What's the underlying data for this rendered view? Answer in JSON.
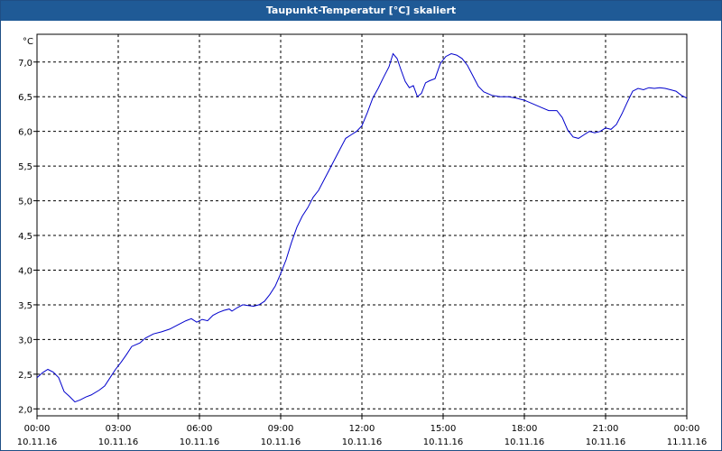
{
  "window": {
    "title": "Taupunkt-Temperatur [°C] skaliert"
  },
  "chart_data": {
    "type": "line",
    "title": "Taupunkt-Temperatur [°C] skaliert",
    "ylabel": "°C",
    "ylim": [
      1.9,
      7.4
    ],
    "xlim": [
      0,
      24
    ],
    "grid": true,
    "y_ticks": [
      {
        "value": 2.0,
        "label": "2,0"
      },
      {
        "value": 2.5,
        "label": "2,5"
      },
      {
        "value": 3.0,
        "label": "3,0"
      },
      {
        "value": 3.5,
        "label": "3,5"
      },
      {
        "value": 4.0,
        "label": "4,0"
      },
      {
        "value": 4.5,
        "label": "4,5"
      },
      {
        "value": 5.0,
        "label": "5,0"
      },
      {
        "value": 5.5,
        "label": "5,5"
      },
      {
        "value": 6.0,
        "label": "6,0"
      },
      {
        "value": 6.5,
        "label": "6,5"
      },
      {
        "value": 7.0,
        "label": "7,0"
      }
    ],
    "x_ticks": [
      {
        "value": 0,
        "time": "00:00",
        "date": "10.11.16"
      },
      {
        "value": 3,
        "time": "03:00",
        "date": "10.11.16"
      },
      {
        "value": 6,
        "time": "06:00",
        "date": "10.11.16"
      },
      {
        "value": 9,
        "time": "09:00",
        "date": "10.11.16"
      },
      {
        "value": 12,
        "time": "12:00",
        "date": "10.11.16"
      },
      {
        "value": 15,
        "time": "15:00",
        "date": "10.11.16"
      },
      {
        "value": 18,
        "time": "18:00",
        "date": "10.11.16"
      },
      {
        "value": 21,
        "time": "21:00",
        "date": "10.11.16"
      },
      {
        "value": 24,
        "time": "00:00",
        "date": "11.11.16"
      }
    ],
    "series": [
      {
        "color": "#0000cc",
        "points": [
          [
            0.0,
            2.45
          ],
          [
            0.2,
            2.52
          ],
          [
            0.4,
            2.57
          ],
          [
            0.6,
            2.53
          ],
          [
            0.8,
            2.45
          ],
          [
            1.0,
            2.25
          ],
          [
            1.2,
            2.18
          ],
          [
            1.4,
            2.1
          ],
          [
            1.6,
            2.13
          ],
          [
            1.8,
            2.17
          ],
          [
            2.0,
            2.2
          ],
          [
            2.3,
            2.27
          ],
          [
            2.5,
            2.33
          ],
          [
            2.7,
            2.45
          ],
          [
            2.9,
            2.57
          ],
          [
            3.1,
            2.67
          ],
          [
            3.3,
            2.78
          ],
          [
            3.5,
            2.9
          ],
          [
            3.8,
            2.95
          ],
          [
            4.0,
            3.02
          ],
          [
            4.3,
            3.08
          ],
          [
            4.6,
            3.11
          ],
          [
            4.9,
            3.15
          ],
          [
            5.2,
            3.21
          ],
          [
            5.5,
            3.27
          ],
          [
            5.7,
            3.3
          ],
          [
            5.9,
            3.25
          ],
          [
            6.1,
            3.29
          ],
          [
            6.3,
            3.27
          ],
          [
            6.5,
            3.35
          ],
          [
            6.7,
            3.39
          ],
          [
            6.9,
            3.42
          ],
          [
            7.1,
            3.44
          ],
          [
            7.2,
            3.41
          ],
          [
            7.4,
            3.46
          ],
          [
            7.6,
            3.5
          ],
          [
            7.8,
            3.49
          ],
          [
            8.0,
            3.48
          ],
          [
            8.2,
            3.5
          ],
          [
            8.4,
            3.55
          ],
          [
            8.6,
            3.65
          ],
          [
            8.8,
            3.77
          ],
          [
            9.0,
            3.95
          ],
          [
            9.2,
            4.15
          ],
          [
            9.4,
            4.4
          ],
          [
            9.6,
            4.62
          ],
          [
            9.8,
            4.78
          ],
          [
            10.0,
            4.9
          ],
          [
            10.2,
            5.05
          ],
          [
            10.4,
            5.15
          ],
          [
            10.6,
            5.3
          ],
          [
            10.8,
            5.45
          ],
          [
            11.0,
            5.6
          ],
          [
            11.2,
            5.75
          ],
          [
            11.4,
            5.9
          ],
          [
            11.6,
            5.95
          ],
          [
            11.8,
            6.0
          ],
          [
            12.0,
            6.08
          ],
          [
            12.2,
            6.27
          ],
          [
            12.4,
            6.48
          ],
          [
            12.6,
            6.62
          ],
          [
            12.8,
            6.78
          ],
          [
            13.0,
            6.93
          ],
          [
            13.15,
            7.12
          ],
          [
            13.3,
            7.05
          ],
          [
            13.45,
            6.88
          ],
          [
            13.6,
            6.72
          ],
          [
            13.75,
            6.63
          ],
          [
            13.9,
            6.66
          ],
          [
            14.05,
            6.5
          ],
          [
            14.2,
            6.55
          ],
          [
            14.35,
            6.7
          ],
          [
            14.5,
            6.73
          ],
          [
            14.7,
            6.76
          ],
          [
            14.9,
            6.98
          ],
          [
            15.1,
            7.08
          ],
          [
            15.3,
            7.12
          ],
          [
            15.5,
            7.1
          ],
          [
            15.7,
            7.05
          ],
          [
            15.9,
            6.95
          ],
          [
            16.1,
            6.8
          ],
          [
            16.3,
            6.65
          ],
          [
            16.5,
            6.57
          ],
          [
            16.8,
            6.52
          ],
          [
            17.1,
            6.5
          ],
          [
            17.4,
            6.5
          ],
          [
            17.7,
            6.48
          ],
          [
            18.0,
            6.45
          ],
          [
            18.3,
            6.4
          ],
          [
            18.6,
            6.35
          ],
          [
            18.9,
            6.3
          ],
          [
            19.2,
            6.3
          ],
          [
            19.4,
            6.2
          ],
          [
            19.6,
            6.02
          ],
          [
            19.8,
            5.92
          ],
          [
            20.0,
            5.9
          ],
          [
            20.2,
            5.95
          ],
          [
            20.4,
            6.0
          ],
          [
            20.6,
            5.98
          ],
          [
            20.8,
            6.0
          ],
          [
            21.0,
            6.05
          ],
          [
            21.2,
            6.03
          ],
          [
            21.4,
            6.1
          ],
          [
            21.6,
            6.25
          ],
          [
            21.8,
            6.42
          ],
          [
            22.0,
            6.58
          ],
          [
            22.2,
            6.62
          ],
          [
            22.4,
            6.6
          ],
          [
            22.6,
            6.63
          ],
          [
            22.8,
            6.62
          ],
          [
            23.0,
            6.63
          ],
          [
            23.2,
            6.62
          ],
          [
            23.4,
            6.6
          ],
          [
            23.6,
            6.58
          ],
          [
            23.8,
            6.52
          ],
          [
            24.0,
            6.48
          ]
        ]
      }
    ]
  }
}
